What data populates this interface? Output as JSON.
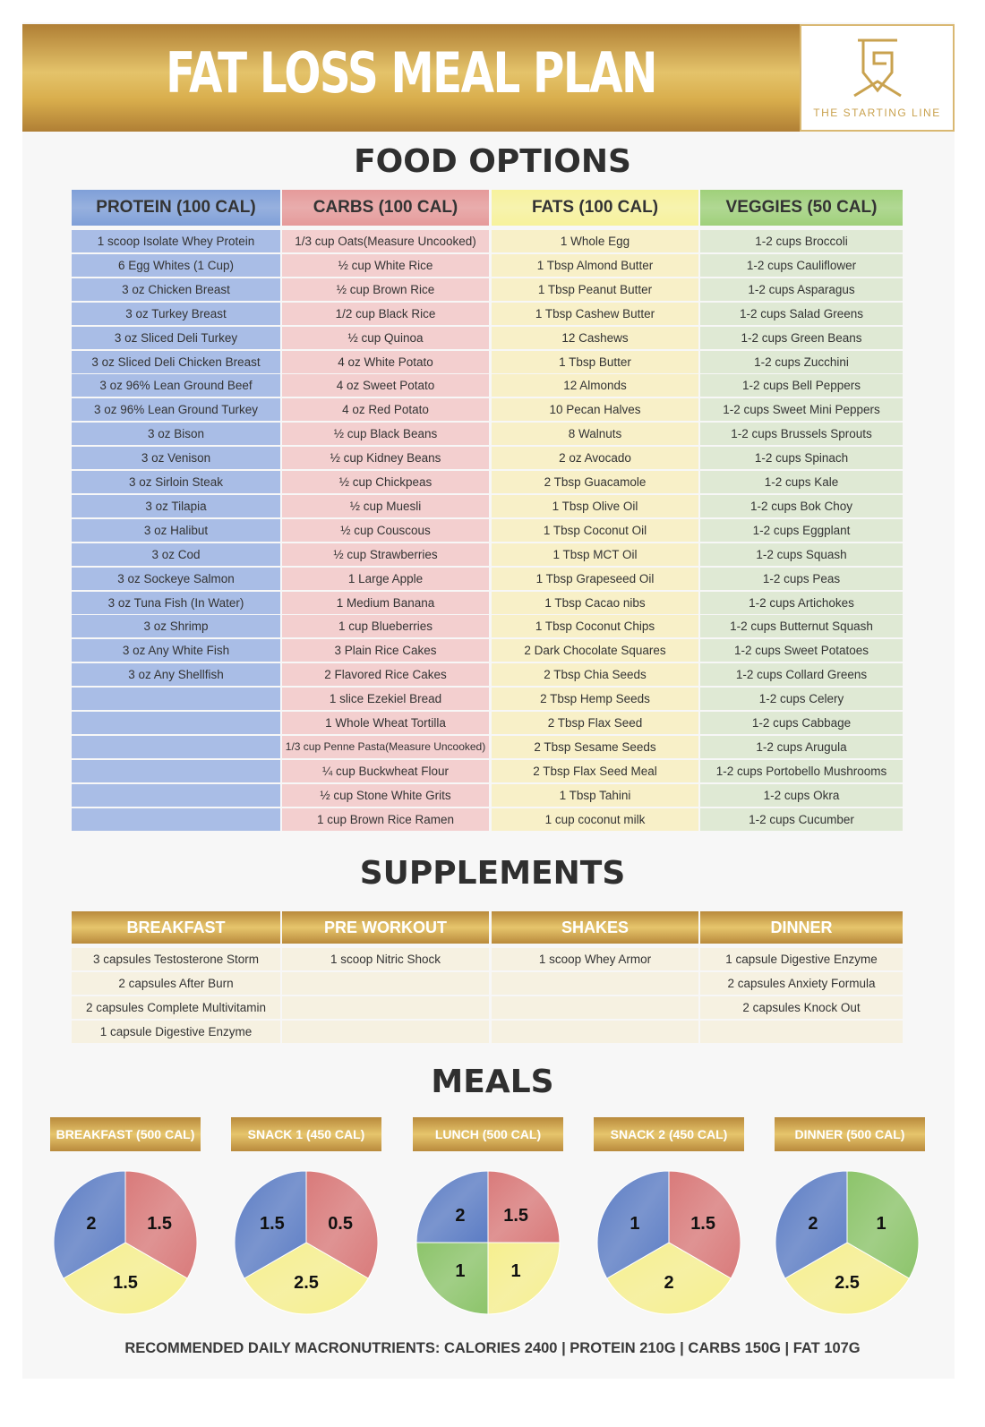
{
  "header": {
    "title": "FAT LOSS MEAL PLAN",
    "logo_text": "THE STARTING LINE"
  },
  "food_options": {
    "title": "FOOD OPTIONS",
    "columns": [
      {
        "key": "protein",
        "label": "PROTEIN (100 CAL)",
        "color": "#7f9fd8",
        "cell": "#a9bde6",
        "items": [
          "1 scoop Isolate Whey Protein",
          "6 Egg Whites (1 Cup)",
          "3 oz Chicken Breast",
          "3 oz Turkey Breast",
          "3 oz Sliced Deli Turkey",
          "3 oz Sliced Deli Chicken Breast",
          "3 oz 96% Lean Ground Beef",
          "3 oz 96% Lean Ground Turkey",
          "3 oz Bison",
          "3 oz Venison",
          "3 oz Sirloin Steak",
          "3 oz Tilapia",
          "3 oz Halibut",
          "3 oz Cod",
          "3 oz Sockeye Salmon",
          "3 oz Tuna Fish (In Water)",
          "3 oz Shrimp",
          "3 oz Any White Fish",
          "3 oz Any Shellfish",
          "",
          "",
          "",
          "",
          "",
          ""
        ]
      },
      {
        "key": "carbs",
        "label": "CARBS (100 CAL)",
        "color": "#e59a9a",
        "cell": "#f3cfcf",
        "items": [
          "1/3 cup Oats(Measure Uncooked)",
          "½ cup White Rice",
          "½ cup Brown Rice",
          "1/2 cup Black Rice",
          "½ cup Quinoa",
          "4 oz White Potato",
          "4 oz Sweet Potato",
          "4 oz Red Potato",
          "½ cup Black Beans",
          "½ cup Kidney Beans",
          "½ cup Chickpeas",
          "½ cup Muesli",
          "½ cup Couscous",
          "½ cup Strawberries",
          "1 Large Apple",
          "1 Medium Banana",
          "1 cup Blueberries",
          "3 Plain Rice Cakes",
          "2 Flavored Rice Cakes",
          "1 slice Ezekiel Bread",
          "1 Whole Wheat Tortilla",
          "1/3 cup Penne Pasta(Measure Uncooked)",
          "¼ cup Buckwheat Flour",
          "½ cup Stone White Grits",
          "1 cup Brown Rice Ramen"
        ]
      },
      {
        "key": "fats",
        "label": "FATS (100 CAL)",
        "color": "#f7f29c",
        "cell": "#f8f0c8",
        "items": [
          "1 Whole Egg",
          "1 Tbsp Almond Butter",
          "1 Tbsp Peanut Butter",
          "1 Tbsp Cashew Butter",
          "12 Cashews",
          "1 Tbsp Butter",
          "12 Almonds",
          "10 Pecan Halves",
          "8 Walnuts",
          "2 oz Avocado",
          "2 Tbsp Guacamole",
          "1 Tbsp Olive Oil",
          "1 Tbsp Coconut Oil",
          "1 Tbsp MCT Oil",
          "1 Tbsp Grapeseed Oil",
          "1 Tbsp Cacao nibs",
          "1 Tbsp Coconut Chips",
          "2 Dark Chocolate Squares",
          "2 Tbsp Chia Seeds",
          "2 Tbsp Hemp Seeds",
          "2 Tbsp Flax Seed",
          "2 Tbsp Sesame Seeds",
          "2 Tbsp Flax Seed Meal",
          "1 Tbsp Tahini",
          "1 cup coconut milk"
        ]
      },
      {
        "key": "veggies",
        "label": "VEGGIES (50 CAL)",
        "color": "#9fd07a",
        "cell": "#dfe9d4",
        "items": [
          "1-2 cups Broccoli",
          "1-2 cups Cauliflower",
          "1-2 cups Asparagus",
          "1-2 cups Salad Greens",
          "1-2 cups Green Beans",
          "1-2 cups Zucchini",
          "1-2 cups Bell Peppers",
          "1-2 cups Sweet Mini Peppers",
          "1-2 cups Brussels Sprouts",
          "1-2 cups Spinach",
          "1-2 cups Kale",
          "1-2 cups Bok Choy",
          "1-2 cups Eggplant",
          "1-2 cups Squash",
          "1-2 cups Peas",
          "1-2 cups Artichokes",
          "1-2 cups Butternut Squash",
          "1-2 cups Sweet Potatoes",
          "1-2 cups Collard Greens",
          "1-2 cups Celery",
          "1-2 cups Cabbage",
          "1-2 cups Arugula",
          "1-2 cups Portobello Mushrooms",
          "1-2 cups Okra",
          "1-2 cups Cucumber"
        ]
      }
    ]
  },
  "supplements": {
    "title": "SUPPLEMENTS",
    "columns": [
      {
        "label": "BREAKFAST",
        "items": [
          "3 capsules Testosterone Storm",
          "2 capsules After Burn",
          "2 capsules Complete Multivitamin",
          "1 capsule Digestive Enzyme"
        ]
      },
      {
        "label": "PRE WORKOUT",
        "items": [
          "1 scoop Nitric Shock",
          "",
          "",
          ""
        ]
      },
      {
        "label": "SHAKES",
        "items": [
          "1 scoop Whey Armor",
          "",
          "",
          ""
        ]
      },
      {
        "label": "DINNER",
        "items": [
          "1 capsule Digestive Enzyme",
          "2 capsules Anxiety Formula",
          "2 capsules Knock Out",
          ""
        ]
      }
    ]
  },
  "meals": {
    "title": "MEALS"
  },
  "colors": {
    "protein": "#5b7cc4",
    "carbs": "#d97a7a",
    "fats": "#f6ef8e",
    "veggies": "#8cc46a",
    "gold": "#d4ac52"
  },
  "chart_data": {
    "type": "pie",
    "unit": "servings",
    "meals": [
      {
        "label": "BREAKFAST (500 CAL)",
        "slices": [
          {
            "category": "carbs",
            "value": 1.5
          },
          {
            "category": "fats",
            "value": 1.5
          },
          {
            "category": "protein",
            "value": 2
          }
        ]
      },
      {
        "label": "SNACK 1 (450 CAL)",
        "slices": [
          {
            "category": "carbs",
            "value": 0.5
          },
          {
            "category": "fats",
            "value": 2.5
          },
          {
            "category": "protein",
            "value": 1.5
          }
        ]
      },
      {
        "label": "LUNCH (500 CAL)",
        "slices": [
          {
            "category": "carbs",
            "value": 1.5
          },
          {
            "category": "fats",
            "value": 1
          },
          {
            "category": "veggies",
            "value": 1
          },
          {
            "category": "protein",
            "value": 2
          }
        ]
      },
      {
        "label": "SNACK 2 (450 CAL)",
        "slices": [
          {
            "category": "carbs",
            "value": 1.5
          },
          {
            "category": "fats",
            "value": 2
          },
          {
            "category": "protein",
            "value": 1
          }
        ]
      },
      {
        "label": "DINNER (500 CAL)",
        "slices": [
          {
            "category": "veggies",
            "value": 1
          },
          {
            "category": "fats",
            "value": 2.5
          },
          {
            "category": "protein",
            "value": 2
          }
        ]
      }
    ]
  },
  "footer": "RECOMMENDED DAILY MACRONUTRIENTS: CALORIES 2400 | PROTEIN 210G | CARBS 150G | FAT 107G"
}
